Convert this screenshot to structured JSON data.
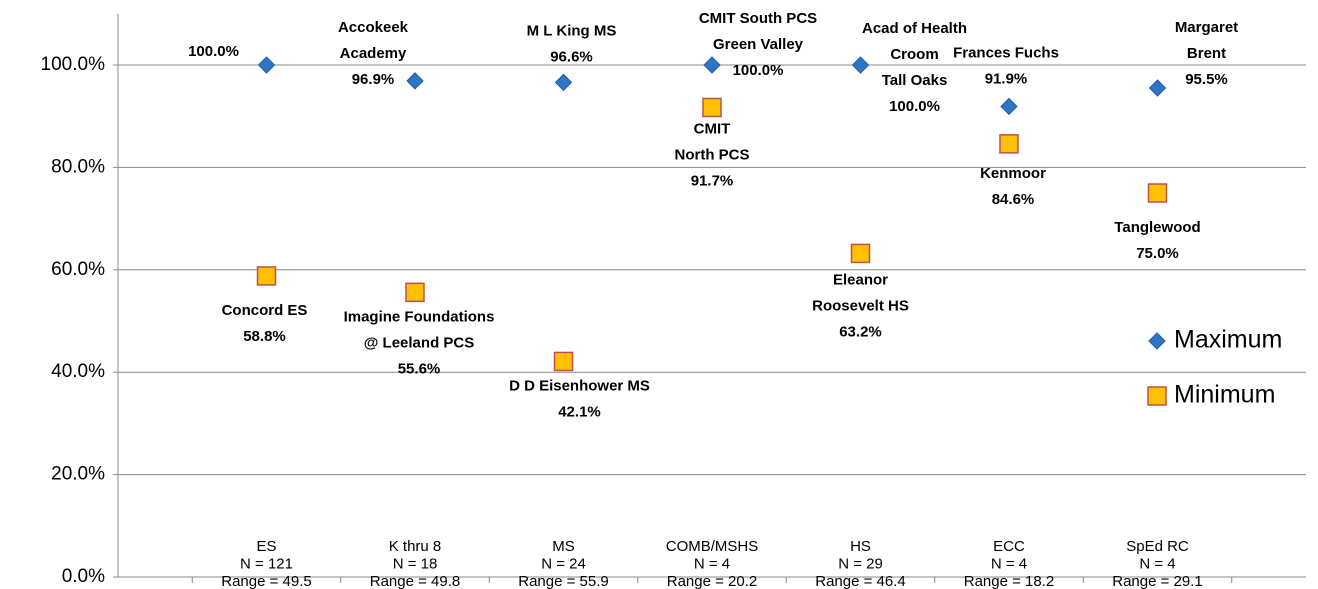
{
  "chart_data": {
    "type": "scatter",
    "categories": [
      [
        "ES",
        "N = 121",
        "Range = 49.5"
      ],
      [
        "K thru 8",
        "N = 18",
        "Range = 49.8"
      ],
      [
        "MS",
        "N = 24",
        "Range = 55.9"
      ],
      [
        "COMB/MSHS",
        "N = 4",
        "Range = 20.2"
      ],
      [
        "HS",
        "N = 29",
        "Range = 46.4"
      ],
      [
        "ECC",
        "N = 4",
        "Range = 18.2"
      ],
      [
        "SpEd RC",
        "N = 4",
        "Range = 29.1"
      ]
    ],
    "series": [
      {
        "name": "Maximum",
        "color": "#2e75c4",
        "marker": "diamond",
        "values": [
          100.0,
          96.9,
          96.6,
          100.0,
          100.0,
          91.9,
          95.5
        ],
        "value_labels": [
          "100.0%",
          "96.9%",
          "96.6%",
          "100.0%",
          "100.0%",
          "91.9%",
          "95.5%"
        ],
        "point_labels": [
          [],
          [
            "Accokeek",
            "Academy"
          ],
          [
            "M L King MS"
          ],
          [
            "CMIT South PCS",
            "Green Valley"
          ],
          [
            "Acad of Health",
            "Croom",
            "Tall Oaks"
          ],
          [
            "Frances Fuchs"
          ],
          [
            "Margaret",
            "Brent"
          ]
        ]
      },
      {
        "name": "Minimum",
        "color": "#ffc000",
        "edge_color": "#c0504d",
        "marker": "square",
        "values": [
          58.8,
          55.6,
          42.1,
          91.7,
          63.2,
          84.6,
          75.0
        ],
        "value_labels": [
          "58.8%",
          "55.6%",
          "42.1%",
          "91.7%",
          "63.2%",
          "84.6%",
          "75.0%"
        ],
        "point_labels": [
          [
            "Concord ES"
          ],
          [
            "Imagine Foundations",
            "@ Leeland PCS"
          ],
          [
            "D D Eisenhower MS"
          ],
          [
            "CMIT",
            "North PCS"
          ],
          [
            "Eleanor",
            "Roosevelt HS"
          ],
          [
            "Kenmoor"
          ],
          [
            "Tanglewood"
          ]
        ]
      }
    ],
    "ylim": [
      0,
      110
    ],
    "yticks": [
      {
        "value": 0,
        "label": "0.0%"
      },
      {
        "value": 20,
        "label": "20.0%"
      },
      {
        "value": 40,
        "label": "40.0%"
      },
      {
        "value": 60,
        "label": "60.0%"
      },
      {
        "value": 80,
        "label": "80.0%"
      },
      {
        "value": 100,
        "label": "100.0%"
      }
    ],
    "grid": true,
    "legend": "right"
  }
}
